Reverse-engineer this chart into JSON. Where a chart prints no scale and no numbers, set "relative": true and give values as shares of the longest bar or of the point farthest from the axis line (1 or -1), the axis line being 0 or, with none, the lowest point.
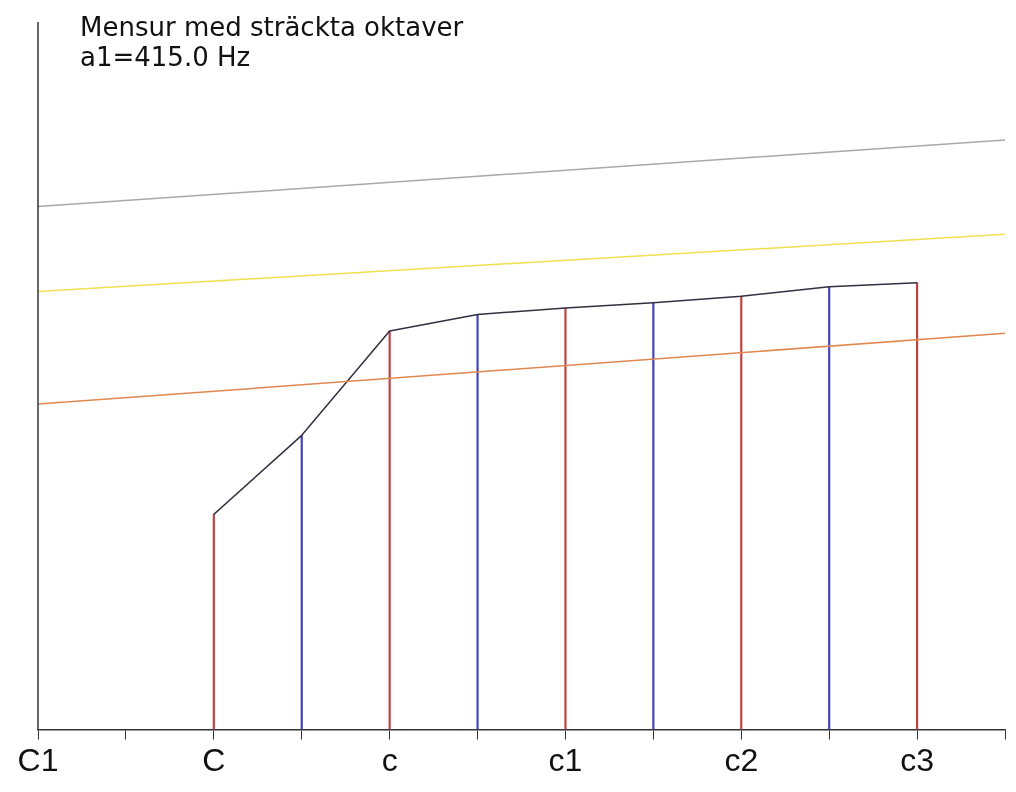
{
  "chart_data": {
    "type": "line",
    "title": "Mensur med sträckta oktaver",
    "subtitle": "a1=415.0 Hz",
    "relative": true,
    "grid": false,
    "legend": false,
    "marker": "none",
    "tick_labels": "x",
    "categories": [
      "C1",
      null,
      "C",
      null,
      "c",
      null,
      "c1",
      null,
      "c2",
      null,
      "c3",
      null
    ],
    "series": [
      {
        "color": "#a8a8a8",
        "values": [
          0.887,
          null,
          null,
          null,
          null,
          null,
          null,
          null,
          null,
          null,
          null,
          1
        ]
      },
      {
        "color": "#f0e050",
        "values": [
          0.743,
          null,
          null,
          null,
          null,
          null,
          null,
          null,
          null,
          null,
          null,
          0.84
        ]
      },
      {
        "color": "#e08850",
        "values": [
          0.552,
          null,
          null,
          null,
          null,
          null,
          null,
          null,
          null,
          null,
          null,
          0.672
        ]
      },
      {
        "color": "#303040",
        "values": [
          null,
          null,
          0.365,
          0.499,
          0.676,
          0.704,
          0.715,
          0.724,
          0.735,
          0.751,
          0.758,
          null
        ]
      },
      {
        "type": "bar",
        "color": "#c04040",
        "values": [
          null,
          null,
          0.365,
          null,
          0.676,
          null,
          0.715,
          null,
          0.735,
          null,
          0.758,
          null
        ]
      },
      {
        "type": "bar",
        "color": "#4040c0",
        "values": [
          null,
          null,
          null,
          0.499,
          null,
          0.704,
          null,
          0.724,
          null,
          0.751,
          null,
          null
        ]
      }
    ]
  }
}
